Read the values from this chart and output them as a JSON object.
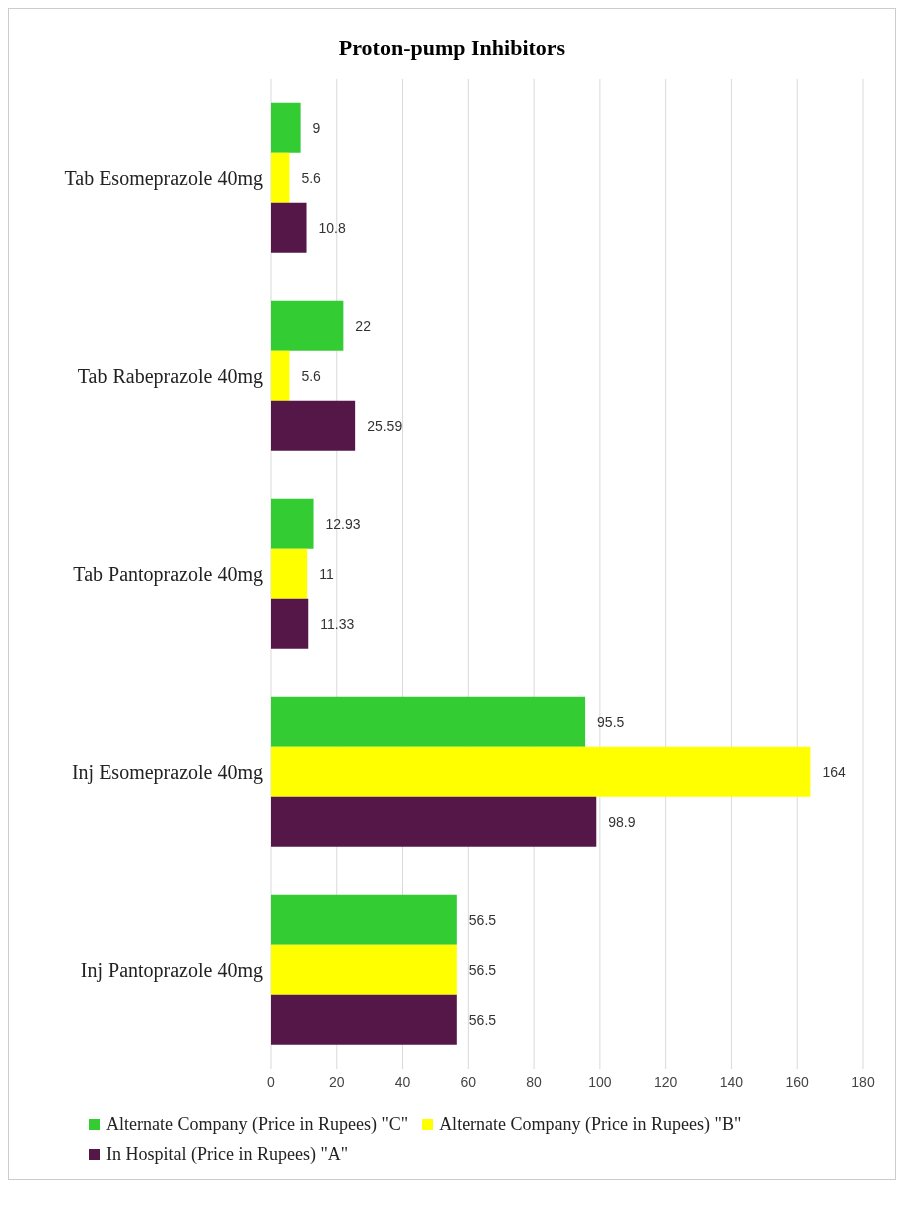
{
  "chart_data": {
    "type": "bar",
    "orientation": "horizontal",
    "title": "Proton-pump Inhibitors",
    "categories": [
      "Tab Esomeprazole 40mg",
      "Tab Rabeprazole 40mg",
      "Tab Pantoprazole 40mg",
      "Inj Esomeprazole 40mg",
      "Inj Pantoprazole 40mg"
    ],
    "series": [
      {
        "name": "Alternate Company (Price in Rupees) \"C\"",
        "color": "#33cc33",
        "values": [
          9,
          22,
          12.93,
          95.5,
          56.5
        ]
      },
      {
        "name": "Alternate Company (Price in Rupees) \"B\"",
        "color": "#ffff00",
        "values": [
          5.6,
          5.6,
          11,
          164,
          56.5
        ]
      },
      {
        "name": "In Hospital (Price in Rupees) \"A\"",
        "color": "#541747",
        "values": [
          10.8,
          25.59,
          11.33,
          98.9,
          56.5
        ]
      }
    ],
    "xlim": [
      0,
      180
    ],
    "xticks": [
      0,
      20,
      40,
      60,
      80,
      100,
      120,
      140,
      160,
      180
    ],
    "grid": "x",
    "legend": "bottom",
    "data_labels": true
  }
}
